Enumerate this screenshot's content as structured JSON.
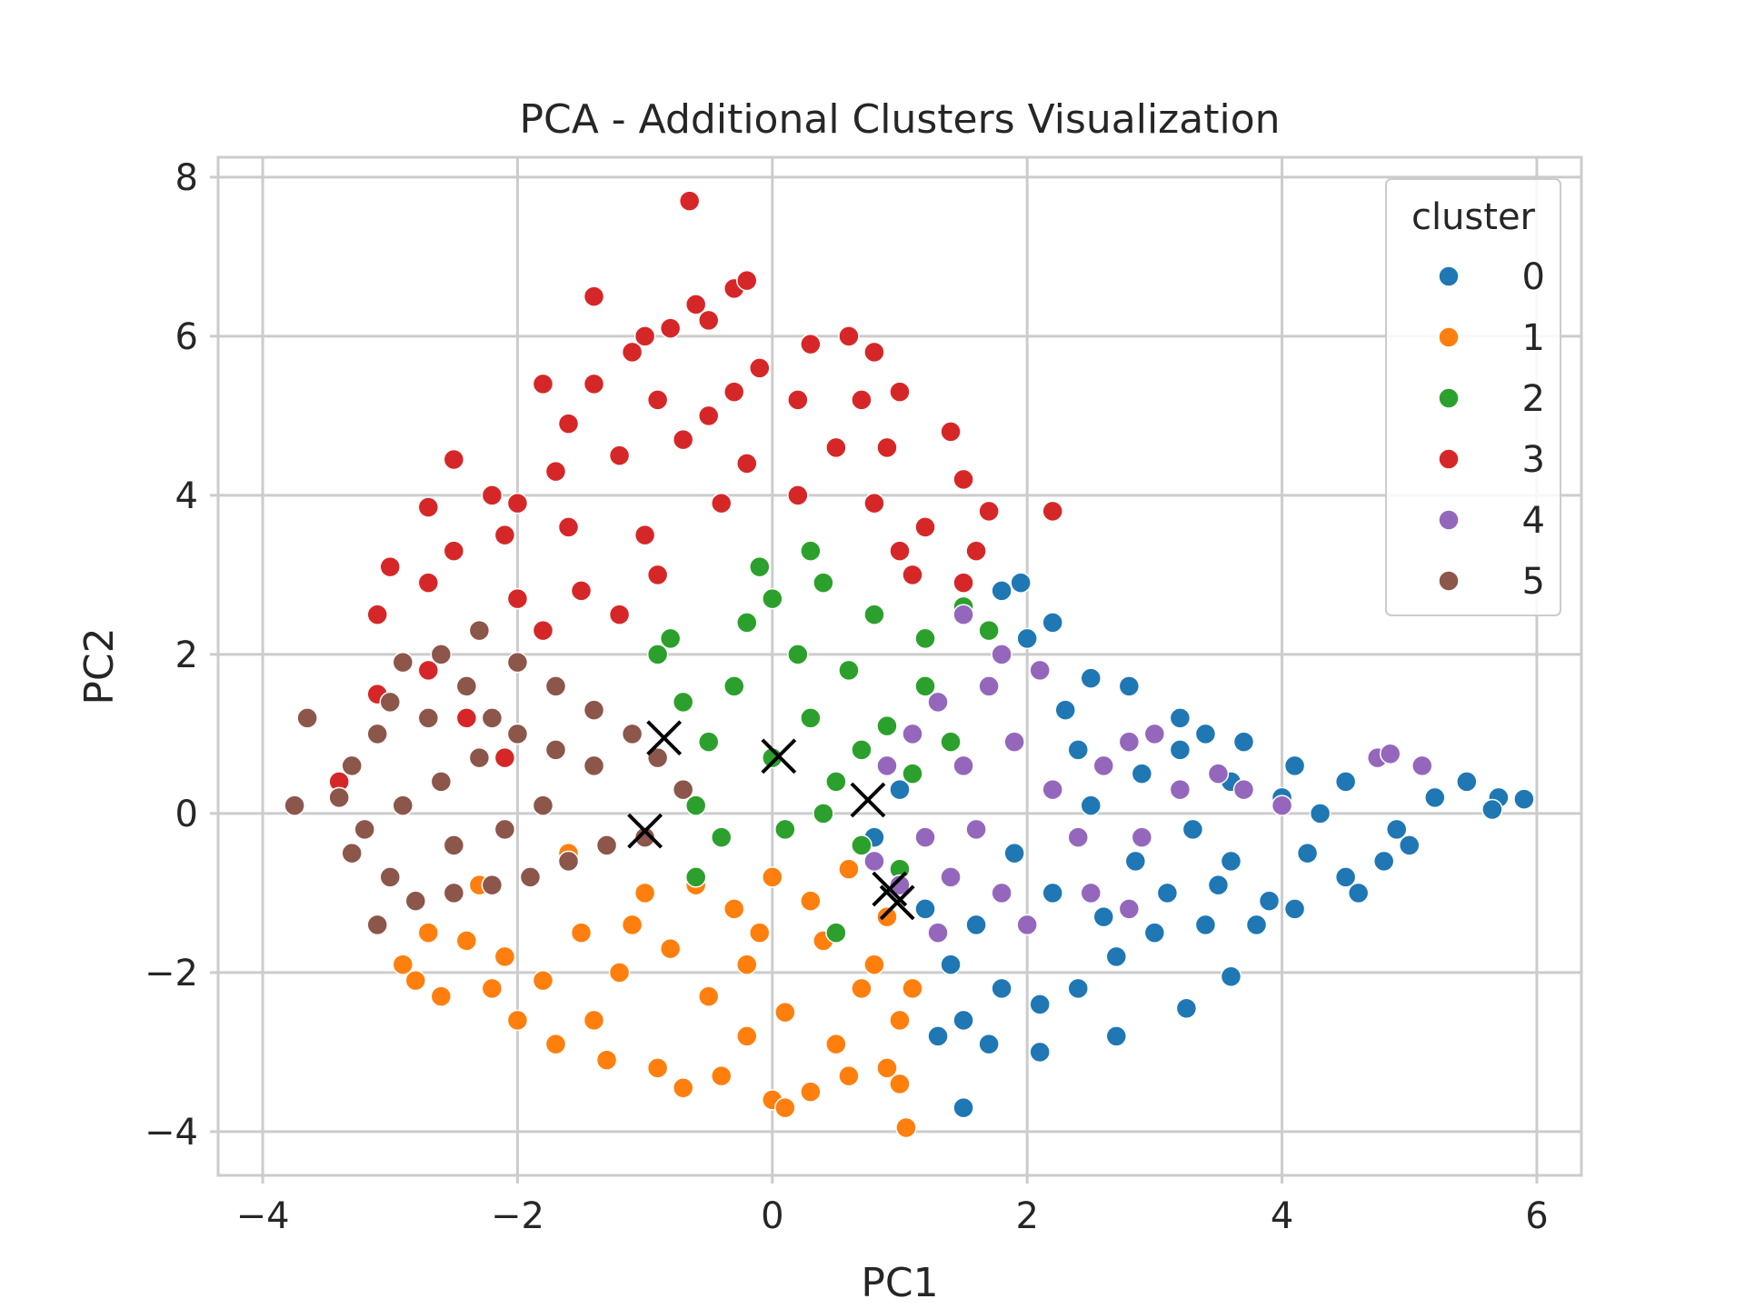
{
  "chart_data": {
    "type": "scatter",
    "title": "PCA - Additional Clusters Visualization",
    "xlabel": "PC1",
    "ylabel": "PC2",
    "xlim": [
      -4.35,
      6.35
    ],
    "ylim": [
      -4.55,
      8.25
    ],
    "x_ticks": [
      -4,
      -2,
      0,
      2,
      4,
      6
    ],
    "x_tick_labels": [
      "−4",
      "−2",
      "0",
      "2",
      "4",
      "6"
    ],
    "y_ticks": [
      -4,
      -2,
      0,
      2,
      4,
      6,
      8
    ],
    "y_tick_labels": [
      "−4",
      "−2",
      "0",
      "2",
      "4",
      "6",
      "8"
    ],
    "grid": true,
    "legend": {
      "title": "cluster",
      "placement": "top-right",
      "entries": [
        "0",
        "1",
        "2",
        "3",
        "4",
        "5"
      ]
    },
    "series": [
      {
        "name": "0",
        "color": "#1f77b4",
        "points": [
          [
            2.85,
            -0.6
          ],
          [
            3.1,
            -1.0
          ],
          [
            3.3,
            -0.2
          ],
          [
            3.6,
            -0.6
          ],
          [
            3.9,
            -1.1
          ],
          [
            4.2,
            -0.5
          ],
          [
            4.5,
            -0.8
          ],
          [
            4.8,
            -0.6
          ],
          [
            2.5,
            0.1
          ],
          [
            2.9,
            0.5
          ],
          [
            3.2,
            0.8
          ],
          [
            3.6,
            0.4
          ],
          [
            4.0,
            0.2
          ],
          [
            4.3,
            0.0
          ],
          [
            3.0,
            -1.5
          ],
          [
            3.4,
            -1.4
          ],
          [
            2.6,
            -1.3
          ],
          [
            2.2,
            -1.0
          ],
          [
            1.9,
            -0.5
          ],
          [
            1.6,
            -1.4
          ],
          [
            1.4,
            -1.9
          ],
          [
            1.8,
            -2.2
          ],
          [
            2.1,
            -2.4
          ],
          [
            1.5,
            -2.6
          ],
          [
            1.7,
            -2.9
          ],
          [
            2.3,
            1.3
          ],
          [
            2.5,
            1.7
          ],
          [
            2.8,
            1.6
          ],
          [
            2.0,
            2.2
          ],
          [
            1.95,
            2.9
          ],
          [
            1.8,
            2.8
          ],
          [
            2.2,
            2.4
          ],
          [
            3.2,
            1.2
          ],
          [
            3.4,
            1.0
          ],
          [
            3.7,
            0.9
          ],
          [
            4.1,
            0.6
          ],
          [
            4.5,
            0.4
          ],
          [
            4.9,
            -0.2
          ],
          [
            5.2,
            0.2
          ],
          [
            5.45,
            0.4
          ],
          [
            5.7,
            0.2
          ],
          [
            5.9,
            0.18
          ],
          [
            5.65,
            0.05
          ],
          [
            1.5,
            -3.7
          ],
          [
            2.1,
            -3.0
          ],
          [
            2.7,
            -2.8
          ],
          [
            3.25,
            -2.45
          ],
          [
            3.6,
            -2.05
          ],
          [
            2.4,
            -2.2
          ],
          [
            2.7,
            -1.8
          ],
          [
            1.3,
            -2.8
          ],
          [
            1.2,
            -1.2
          ],
          [
            0.8,
            -0.3
          ],
          [
            1.0,
            0.3
          ],
          [
            2.4,
            0.8
          ],
          [
            3.8,
            -1.4
          ],
          [
            4.1,
            -1.2
          ],
          [
            4.6,
            -1.0
          ],
          [
            5.0,
            -0.4
          ],
          [
            3.5,
            -0.9
          ]
        ]
      },
      {
        "name": "1",
        "color": "#ff7f0e",
        "points": [
          [
            -1.5,
            -1.5
          ],
          [
            -1.2,
            -2.0
          ],
          [
            -0.8,
            -1.7
          ],
          [
            -0.5,
            -2.3
          ],
          [
            -0.2,
            -1.9
          ],
          [
            0.1,
            -2.5
          ],
          [
            0.4,
            -1.6
          ],
          [
            0.7,
            -2.2
          ],
          [
            1.0,
            -2.6
          ],
          [
            -1.8,
            -2.1
          ],
          [
            -2.1,
            -1.8
          ],
          [
            -2.4,
            -1.6
          ],
          [
            -2.7,
            -1.5
          ],
          [
            -2.9,
            -1.9
          ],
          [
            -2.8,
            -2.1
          ],
          [
            -2.0,
            -2.6
          ],
          [
            -1.7,
            -2.9
          ],
          [
            -1.3,
            -3.1
          ],
          [
            -0.9,
            -3.2
          ],
          [
            -0.7,
            -3.45
          ],
          [
            -0.4,
            -3.3
          ],
          [
            0.0,
            -3.6
          ],
          [
            0.1,
            -3.7
          ],
          [
            0.3,
            -3.5
          ],
          [
            0.6,
            -3.3
          ],
          [
            0.9,
            -3.2
          ],
          [
            1.0,
            -3.4
          ],
          [
            1.05,
            -3.95
          ],
          [
            -1.0,
            -1.0
          ],
          [
            -0.6,
            -0.9
          ],
          [
            -0.3,
            -1.2
          ],
          [
            0.0,
            -0.8
          ],
          [
            0.3,
            -1.1
          ],
          [
            0.6,
            -0.7
          ],
          [
            0.9,
            -1.3
          ],
          [
            -1.6,
            -0.5
          ],
          [
            -2.3,
            -0.9
          ],
          [
            -1.4,
            -2.6
          ],
          [
            -0.2,
            -2.8
          ],
          [
            0.5,
            -2.9
          ],
          [
            -2.6,
            -2.3
          ],
          [
            -2.2,
            -2.2
          ],
          [
            1.1,
            -2.2
          ],
          [
            0.8,
            -1.9
          ],
          [
            -1.1,
            -1.4
          ],
          [
            -0.1,
            -1.5
          ]
        ]
      },
      {
        "name": "2",
        "color": "#2ca02c",
        "points": [
          [
            0.0,
            0.7
          ],
          [
            0.3,
            1.2
          ],
          [
            -0.3,
            1.6
          ],
          [
            0.5,
            0.4
          ],
          [
            -0.5,
            0.9
          ],
          [
            0.2,
            2.0
          ],
          [
            -0.2,
            2.4
          ],
          [
            0.6,
            1.8
          ],
          [
            0.9,
            1.1
          ],
          [
            1.1,
            0.5
          ],
          [
            -0.7,
            1.4
          ],
          [
            -0.9,
            2.0
          ],
          [
            -0.4,
            -0.3
          ],
          [
            0.1,
            -0.2
          ],
          [
            0.7,
            -0.4
          ],
          [
            1.2,
            1.6
          ],
          [
            0.8,
            2.5
          ],
          [
            0.4,
            2.9
          ],
          [
            -0.1,
            3.1
          ],
          [
            0.3,
            3.3
          ],
          [
            1.5,
            2.6
          ],
          [
            1.2,
            2.2
          ],
          [
            -0.6,
            0.1
          ],
          [
            0.4,
            0.0
          ],
          [
            1.0,
            -0.7
          ],
          [
            0.5,
            -1.5
          ],
          [
            -0.6,
            -0.8
          ],
          [
            1.4,
            0.9
          ],
          [
            1.7,
            2.3
          ],
          [
            0.0,
            2.7
          ],
          [
            -0.8,
            2.2
          ],
          [
            0.7,
            0.8
          ]
        ]
      },
      {
        "name": "3",
        "color": "#d62728",
        "points": [
          [
            -0.65,
            7.7
          ],
          [
            -0.6,
            6.4
          ],
          [
            -0.3,
            6.6
          ],
          [
            -0.2,
            6.7
          ],
          [
            -0.8,
            6.1
          ],
          [
            -1.1,
            5.8
          ],
          [
            -1.4,
            5.4
          ],
          [
            -0.9,
            5.2
          ],
          [
            -0.5,
            5.0
          ],
          [
            -0.1,
            5.6
          ],
          [
            0.3,
            5.9
          ],
          [
            0.6,
            6.0
          ],
          [
            0.8,
            5.8
          ],
          [
            0.7,
            5.2
          ],
          [
            1.0,
            5.3
          ],
          [
            1.4,
            4.8
          ],
          [
            1.5,
            4.2
          ],
          [
            0.5,
            4.6
          ],
          [
            -0.2,
            4.4
          ],
          [
            -0.7,
            4.7
          ],
          [
            -1.2,
            4.5
          ],
          [
            -1.7,
            4.3
          ],
          [
            -1.8,
            5.4
          ],
          [
            -1.4,
            6.5
          ],
          [
            -2.5,
            4.45
          ],
          [
            -2.7,
            3.85
          ],
          [
            -2.0,
            3.9
          ],
          [
            -1.6,
            3.6
          ],
          [
            -1.0,
            3.5
          ],
          [
            -0.4,
            3.9
          ],
          [
            0.2,
            4.0
          ],
          [
            0.8,
            3.9
          ],
          [
            1.2,
            3.6
          ],
          [
            1.7,
            3.8
          ],
          [
            2.2,
            3.8
          ],
          [
            1.6,
            3.3
          ],
          [
            1.5,
            2.9
          ],
          [
            1.1,
            3.0
          ],
          [
            -2.1,
            3.5
          ],
          [
            -2.5,
            3.3
          ],
          [
            -2.7,
            2.9
          ],
          [
            -3.0,
            3.1
          ],
          [
            -3.1,
            2.5
          ],
          [
            -2.2,
            4.0
          ],
          [
            -2.0,
            2.7
          ],
          [
            -1.5,
            2.8
          ],
          [
            -0.9,
            3.0
          ],
          [
            -1.2,
            2.5
          ],
          [
            -1.8,
            2.3
          ],
          [
            -2.3,
            2.3
          ],
          [
            -2.7,
            1.8
          ],
          [
            -3.1,
            1.5
          ],
          [
            -3.4,
            0.4
          ],
          [
            -2.4,
            1.2
          ],
          [
            -2.1,
            0.7
          ],
          [
            0.9,
            4.6
          ],
          [
            1.0,
            3.3
          ],
          [
            0.2,
            5.2
          ],
          [
            -0.3,
            5.3
          ],
          [
            -1.6,
            4.9
          ],
          [
            -1.0,
            6.0
          ],
          [
            -0.5,
            6.2
          ]
        ]
      },
      {
        "name": "4",
        "color": "#9467bd",
        "points": [
          [
            1.3,
            1.4
          ],
          [
            1.5,
            0.6
          ],
          [
            1.7,
            1.6
          ],
          [
            1.9,
            0.9
          ],
          [
            2.2,
            0.3
          ],
          [
            2.4,
            -0.3
          ],
          [
            2.6,
            0.6
          ],
          [
            2.9,
            -0.3
          ],
          [
            3.2,
            0.3
          ],
          [
            3.5,
            0.5
          ],
          [
            3.7,
            0.3
          ],
          [
            4.0,
            0.1
          ],
          [
            1.2,
            -0.3
          ],
          [
            1.0,
            -0.9
          ],
          [
            1.4,
            -0.8
          ],
          [
            1.8,
            -1.0
          ],
          [
            2.0,
            -1.4
          ],
          [
            1.3,
            -1.5
          ],
          [
            1.6,
            -0.2
          ],
          [
            2.1,
            1.8
          ],
          [
            1.5,
            2.5
          ],
          [
            1.8,
            2.0
          ],
          [
            2.8,
            0.9
          ],
          [
            3.0,
            1.0
          ],
          [
            4.75,
            0.7
          ],
          [
            4.85,
            0.75
          ],
          [
            5.1,
            0.6
          ],
          [
            2.5,
            -1.0
          ],
          [
            2.8,
            -1.2
          ],
          [
            0.9,
            0.6
          ],
          [
            1.1,
            1.0
          ],
          [
            0.8,
            -0.6
          ]
        ]
      },
      {
        "name": "5",
        "color": "#8c564b",
        "points": [
          [
            -3.75,
            0.1
          ],
          [
            -3.65,
            1.2
          ],
          [
            -3.4,
            0.2
          ],
          [
            -3.3,
            0.6
          ],
          [
            -3.1,
            1.0
          ],
          [
            -3.0,
            1.4
          ],
          [
            -2.9,
            1.9
          ],
          [
            -2.6,
            2.0
          ],
          [
            -2.3,
            2.3
          ],
          [
            -2.0,
            1.9
          ],
          [
            -1.7,
            1.6
          ],
          [
            -1.4,
            1.3
          ],
          [
            -1.1,
            1.0
          ],
          [
            -0.9,
            0.7
          ],
          [
            -0.7,
            0.3
          ],
          [
            -1.0,
            -0.3
          ],
          [
            -1.3,
            -0.4
          ],
          [
            -1.6,
            -0.6
          ],
          [
            -1.9,
            -0.8
          ],
          [
            -2.2,
            -0.9
          ],
          [
            -2.5,
            -1.0
          ],
          [
            -2.8,
            -1.1
          ],
          [
            -3.1,
            -1.4
          ],
          [
            -3.3,
            -0.5
          ],
          [
            -3.2,
            -0.2
          ],
          [
            -2.9,
            0.1
          ],
          [
            -2.6,
            0.4
          ],
          [
            -2.3,
            0.7
          ],
          [
            -2.0,
            1.0
          ],
          [
            -1.7,
            0.8
          ],
          [
            -2.4,
            1.6
          ],
          [
            -2.7,
            1.2
          ],
          [
            -2.1,
            -0.2
          ],
          [
            -1.8,
            0.1
          ],
          [
            -1.4,
            0.6
          ],
          [
            -3.0,
            -0.8
          ],
          [
            -2.5,
            -0.4
          ],
          [
            -2.2,
            1.2
          ]
        ]
      }
    ],
    "centroids": {
      "color": "#000000",
      "marker": "x",
      "points": [
        [
          -0.85,
          0.95
        ],
        [
          0.05,
          0.72
        ],
        [
          -1.0,
          -0.22
        ],
        [
          0.75,
          0.17
        ],
        [
          0.92,
          -0.95
        ],
        [
          0.98,
          -1.12
        ]
      ]
    }
  }
}
